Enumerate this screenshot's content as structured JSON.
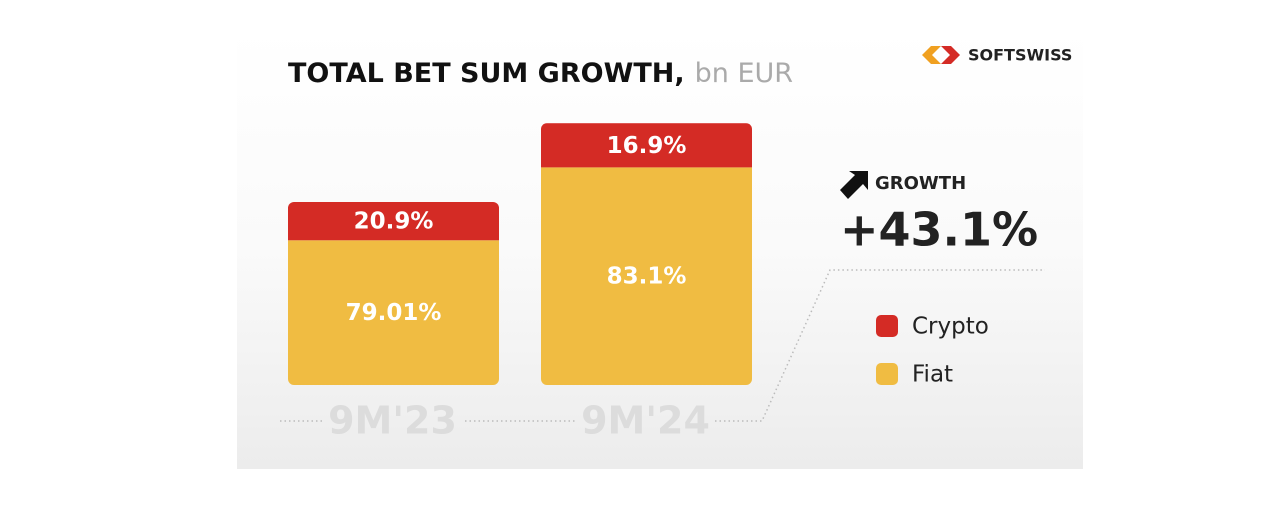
{
  "chart_data": {
    "type": "bar",
    "stacked": true,
    "title": "TOTAL BET SUM GROWTH,",
    "subtitle": "bn EUR",
    "brand": "SOFTSWISS",
    "categories": [
      "9M'23",
      "9M'24"
    ],
    "series": [
      {
        "name": "Fiat",
        "color": "#f0bc42",
        "values": [
          79.01,
          83.1
        ],
        "value_labels": [
          "79.01%",
          "83.1%"
        ]
      },
      {
        "name": "Crypto",
        "color": "#d42b25",
        "values": [
          20.9,
          16.9
        ],
        "value_labels": [
          "20.9%",
          "16.9%"
        ]
      }
    ],
    "growth": {
      "label": "GROWTH",
      "value": 43.1,
      "value_label": "+43.1%"
    }
  }
}
